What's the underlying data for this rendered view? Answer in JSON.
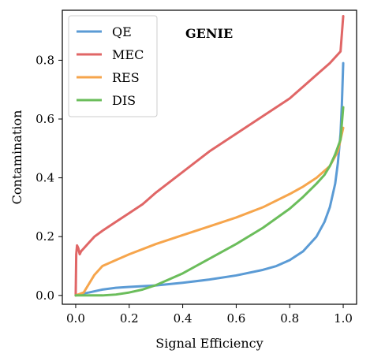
{
  "chart_data": {
    "type": "line",
    "title": "GENIE",
    "xlabel": "Signal Efficiency",
    "ylabel": "Contamination",
    "xlim": [
      -0.05,
      1.05
    ],
    "ylim": [
      -0.03,
      0.97
    ],
    "xticks": [
      "0.0",
      "0.2",
      "0.4",
      "0.6",
      "0.8",
      "1.0"
    ],
    "yticks": [
      "0.0",
      "0.2",
      "0.4",
      "0.6",
      "0.8"
    ],
    "grid": false,
    "legend_position": "top-left",
    "series": [
      {
        "name": "QE",
        "color": "#5b9bd5",
        "x": [
          0.0,
          0.02,
          0.05,
          0.1,
          0.15,
          0.2,
          0.3,
          0.4,
          0.5,
          0.6,
          0.7,
          0.75,
          0.8,
          0.85,
          0.9,
          0.93,
          0.95,
          0.97,
          0.98,
          0.99,
          0.995,
          1.0
        ],
        "y": [
          0.0,
          0.005,
          0.01,
          0.02,
          0.026,
          0.029,
          0.034,
          0.043,
          0.054,
          0.068,
          0.087,
          0.1,
          0.12,
          0.15,
          0.2,
          0.25,
          0.3,
          0.38,
          0.45,
          0.55,
          0.65,
          0.79
        ]
      },
      {
        "name": "MEC",
        "color": "#e06666",
        "x": [
          0.0,
          0.002,
          0.005,
          0.01,
          0.015,
          0.02,
          0.03,
          0.05,
          0.07,
          0.1,
          0.15,
          0.2,
          0.25,
          0.3,
          0.4,
          0.5,
          0.6,
          0.7,
          0.8,
          0.85,
          0.9,
          0.95,
          0.98,
          0.99,
          1.0
        ],
        "y": [
          0.0,
          0.14,
          0.17,
          0.16,
          0.14,
          0.15,
          0.16,
          0.18,
          0.2,
          0.22,
          0.25,
          0.28,
          0.31,
          0.35,
          0.42,
          0.49,
          0.55,
          0.61,
          0.67,
          0.71,
          0.75,
          0.79,
          0.82,
          0.83,
          0.95
        ]
      },
      {
        "name": "RES",
        "color": "#f6a54c",
        "x": [
          0.0,
          0.03,
          0.05,
          0.07,
          0.1,
          0.15,
          0.2,
          0.3,
          0.4,
          0.5,
          0.6,
          0.7,
          0.8,
          0.85,
          0.9,
          0.95,
          0.98,
          1.0
        ],
        "y": [
          0.0,
          0.01,
          0.04,
          0.07,
          0.1,
          0.12,
          0.14,
          0.175,
          0.205,
          0.235,
          0.265,
          0.3,
          0.345,
          0.37,
          0.4,
          0.44,
          0.49,
          0.57
        ]
      },
      {
        "name": "DIS",
        "color": "#6bbd5b",
        "x": [
          0.0,
          0.05,
          0.1,
          0.15,
          0.2,
          0.25,
          0.3,
          0.4,
          0.5,
          0.6,
          0.7,
          0.8,
          0.85,
          0.9,
          0.93,
          0.95,
          0.97,
          0.99,
          1.0
        ],
        "y": [
          0.0,
          0.0,
          0.0,
          0.003,
          0.01,
          0.02,
          0.035,
          0.075,
          0.125,
          0.175,
          0.23,
          0.295,
          0.335,
          0.38,
          0.41,
          0.44,
          0.48,
          0.53,
          0.64
        ]
      }
    ]
  }
}
